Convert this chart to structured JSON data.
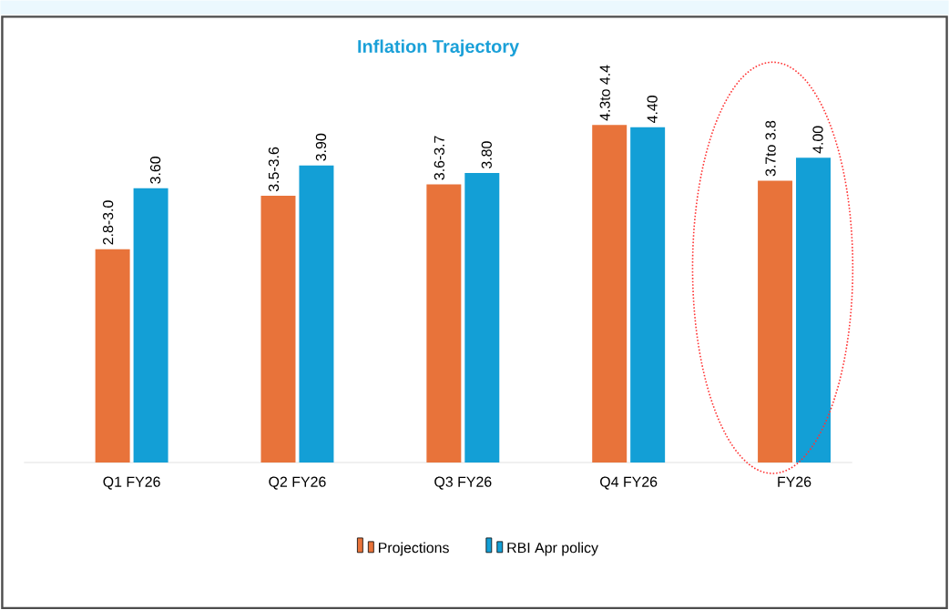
{
  "chart_data": {
    "type": "bar",
    "title": "Inflation Trajectory",
    "categories": [
      "Q1 FY26",
      "Q2 FY26",
      "Q3 FY26",
      "Q4 FY26",
      "FY26"
    ],
    "series": [
      {
        "name": "Projections",
        "color": "#e8733a",
        "values": [
          2.8,
          3.5,
          3.65,
          4.43,
          3.7
        ],
        "value_labels": [
          "2.8-3.0",
          "3.5-3.6",
          "3.6-3.7",
          "4.3to 4.4",
          "3.7to 3.8"
        ]
      },
      {
        "name": "RBI Apr policy",
        "color": "#139fd6",
        "values": [
          3.6,
          3.9,
          3.8,
          4.4,
          4.0
        ],
        "value_labels": [
          "3.60",
          "3.90",
          "3.80",
          "4.40",
          "4.00"
        ]
      }
    ],
    "legend": "bottom",
    "grid": false
  }
}
